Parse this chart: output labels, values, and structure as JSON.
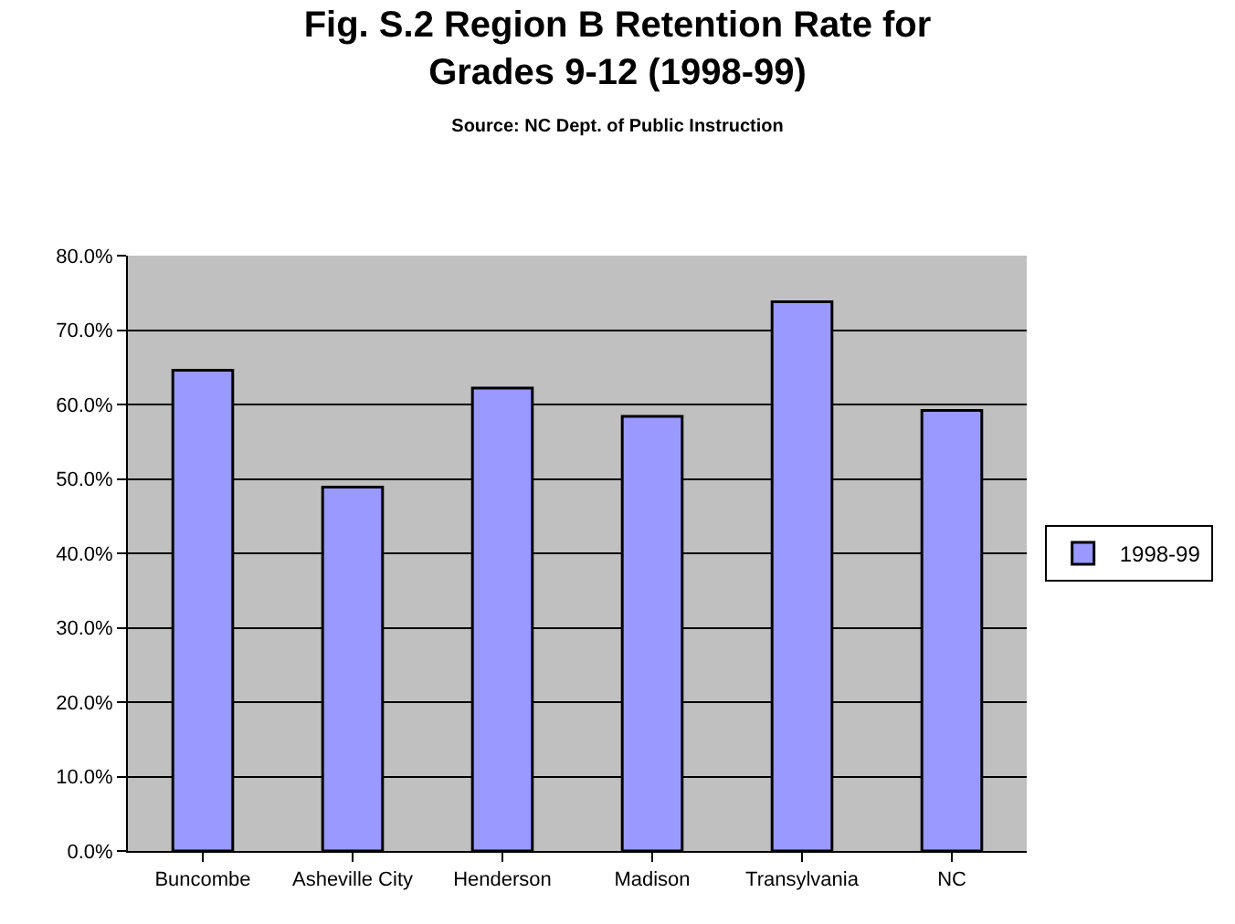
{
  "chart_data": {
    "type": "bar",
    "title": "Fig. S.2 Region B Retention Rate for Grades 9-12 (1998-99)",
    "subtitle": "Source: NC Dept. of Public Instruction",
    "categories": [
      "Buncombe",
      "Asheville City",
      "Henderson",
      "Madison",
      "Transylvania",
      "NC"
    ],
    "series": [
      {
        "name": "1998-99",
        "color": "#9999ff",
        "values": [
          64.6,
          48.9,
          62.2,
          58.4,
          73.8,
          59.2
        ]
      }
    ],
    "ylim": [
      0,
      80
    ],
    "yticks": [
      {
        "value": 0,
        "label": "0.0%"
      },
      {
        "value": 10,
        "label": "10.0%"
      },
      {
        "value": 20,
        "label": "20.0%"
      },
      {
        "value": 30,
        "label": "30.0%"
      },
      {
        "value": 40,
        "label": "40.0%"
      },
      {
        "value": 50,
        "label": "50.0%"
      },
      {
        "value": 60,
        "label": "60.0%"
      },
      {
        "value": 70,
        "label": "70.0%"
      },
      {
        "value": 80,
        "label": "80.0%"
      }
    ],
    "grid": "y",
    "legend": "right"
  }
}
